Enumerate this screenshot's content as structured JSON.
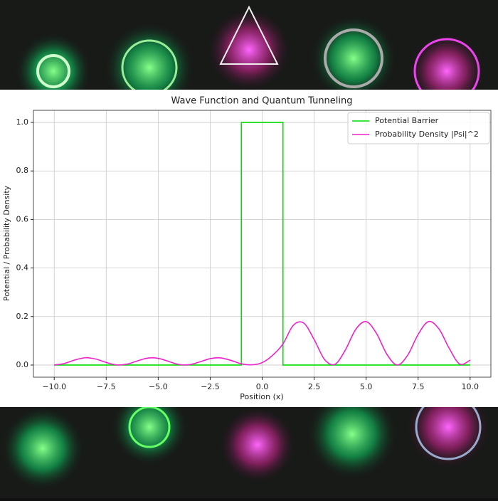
{
  "chart_data": {
    "type": "line",
    "title": "Wave Function and Quantum Tunneling",
    "x_label": "Position (x)",
    "y_label": "Potential / Probability Density",
    "xlim": [
      -11,
      11
    ],
    "ylim": [
      -0.05,
      1.05
    ],
    "xticks": [
      {
        "value": -10,
        "label": "−10.0"
      },
      {
        "value": -7.5,
        "label": "−7.5"
      },
      {
        "value": -5,
        "label": "−5.0"
      },
      {
        "value": -2.5,
        "label": "−2.5"
      },
      {
        "value": 0,
        "label": "0.0"
      },
      {
        "value": 2.5,
        "label": "2.5"
      },
      {
        "value": 5,
        "label": "5.0"
      },
      {
        "value": 7.5,
        "label": "7.5"
      },
      {
        "value": 10,
        "label": "10.0"
      }
    ],
    "yticks": [
      {
        "value": 0,
        "label": "0.0"
      },
      {
        "value": 0.2,
        "label": "0.2"
      },
      {
        "value": 0.4,
        "label": "0.4"
      },
      {
        "value": 0.6,
        "label": "0.6"
      },
      {
        "value": 0.8,
        "label": "0.8"
      },
      {
        "value": 1,
        "label": "1.0"
      }
    ],
    "grid": true,
    "legend": "upper right",
    "series": [
      {
        "name": "Potential Barrier",
        "color": "#00dd00",
        "smooth": false,
        "x": [
          -10,
          -1,
          -1,
          1,
          1,
          10
        ],
        "values": [
          0,
          0,
          1,
          1,
          0,
          0
        ]
      },
      {
        "name": "Probability Density |Psi|^2",
        "color": "#ee22cc",
        "smooth": true,
        "x": [
          -10,
          -9.5,
          -9,
          -8.5,
          -8,
          -7.5,
          -7,
          -6.5,
          -6,
          -5.5,
          -5,
          -4.5,
          -4,
          -3.5,
          -3,
          -2.5,
          -2,
          -1.5,
          -1,
          -0.5,
          0,
          0.5,
          1,
          1.5,
          2,
          2.5,
          3,
          3.5,
          4,
          4.5,
          5,
          5.5,
          6,
          6.5,
          7,
          7.5,
          8,
          8.5,
          9,
          9.5,
          10
        ],
        "values": [
          0,
          0.0069,
          0.0212,
          0.0299,
          0.0248,
          0.0107,
          0.0006,
          0.0037,
          0.0172,
          0.0287,
          0.0276,
          0.015,
          0.0023,
          0.0014,
          0.013,
          0.0264,
          0.0294,
          0.0191,
          0.0051,
          0.001,
          0.01,
          0.04,
          0.087,
          0.164,
          0.173,
          0.105,
          0.023,
          0.003,
          0.062,
          0.147,
          0.179,
          0.13,
          0.044,
          0.0,
          0.041,
          0.126,
          0.179,
          0.149,
          0.068,
          0.004,
          0.02
        ]
      }
    ]
  }
}
